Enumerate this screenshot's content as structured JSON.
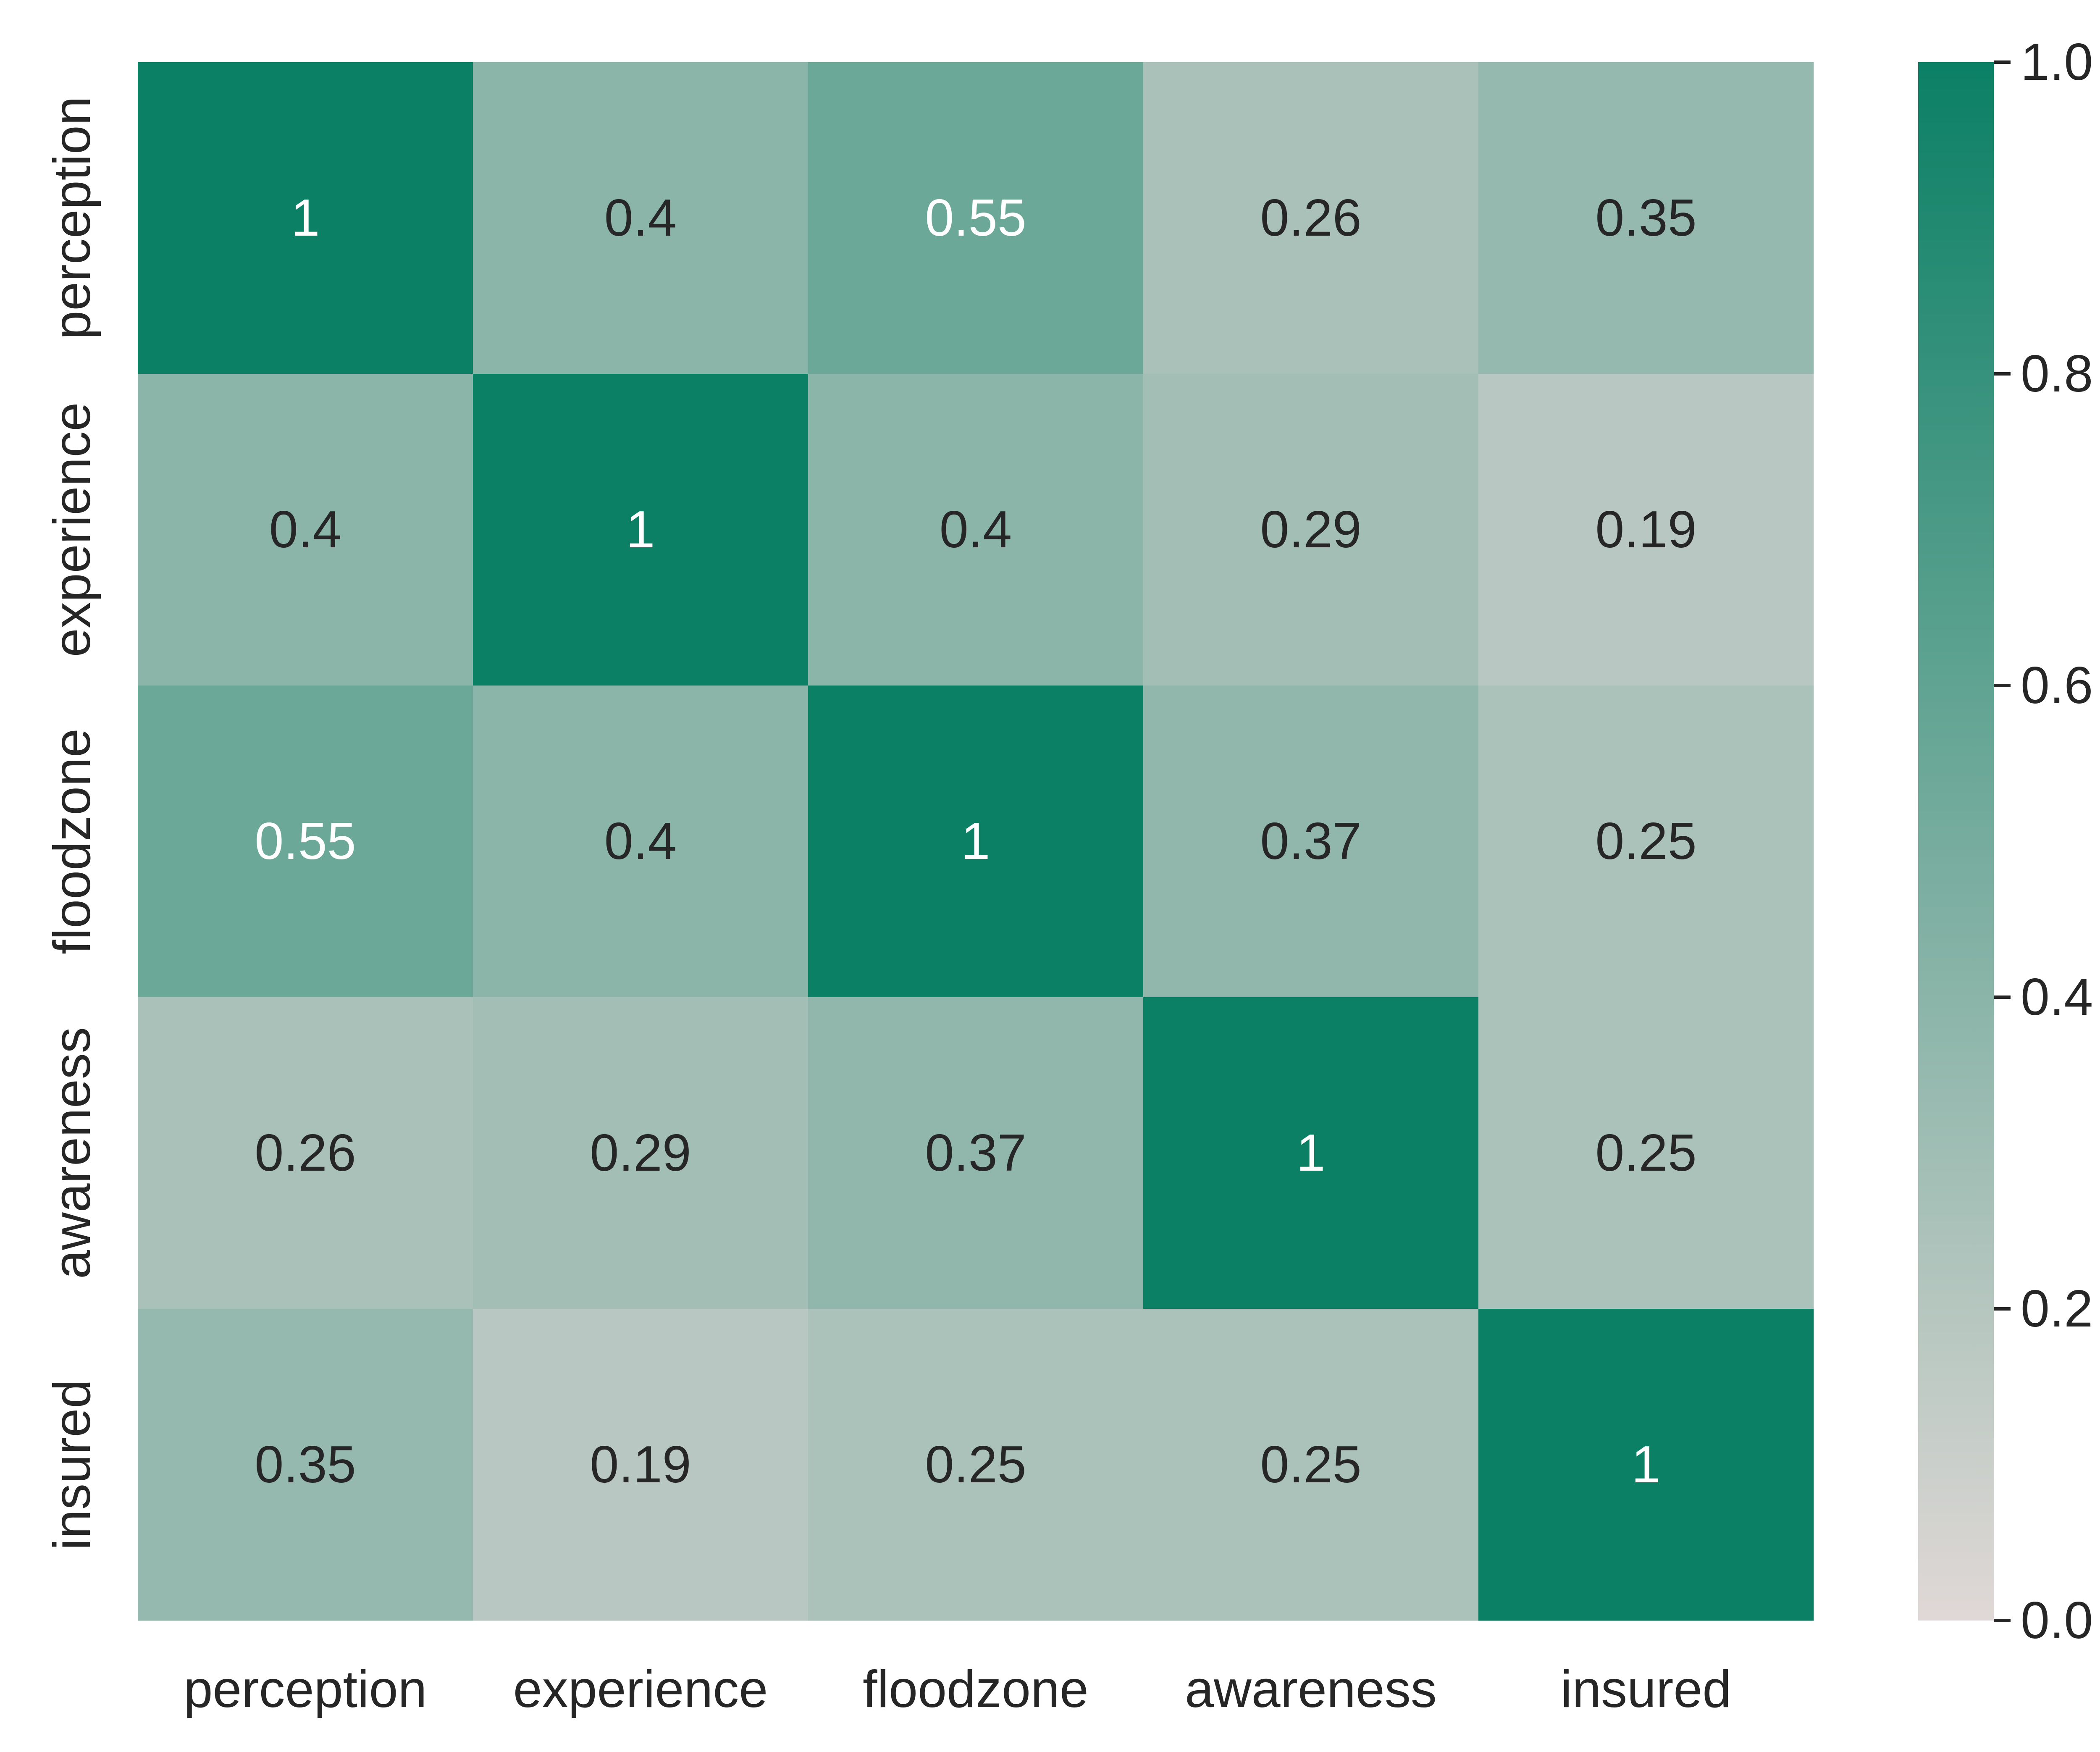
{
  "chart_data": {
    "type": "heatmap",
    "title": "",
    "xlabel": "",
    "ylabel": "",
    "x_categories": [
      "perception",
      "experience",
      "floodzone",
      "awareness",
      "insured"
    ],
    "y_categories": [
      "perception",
      "experience",
      "floodzone",
      "awareness",
      "insured"
    ],
    "values": [
      [
        1,
        0.4,
        0.55,
        0.26,
        0.35
      ],
      [
        0.4,
        1,
        0.4,
        0.29,
        0.19
      ],
      [
        0.55,
        0.4,
        1,
        0.37,
        0.25
      ],
      [
        0.26,
        0.29,
        0.37,
        1,
        0.25
      ],
      [
        0.35,
        0.19,
        0.25,
        0.25,
        1
      ]
    ],
    "annotations": [
      [
        "1",
        "0.4",
        "0.55",
        "0.26",
        "0.35"
      ],
      [
        "0.4",
        "1",
        "0.4",
        "0.29",
        "0.19"
      ],
      [
        "0.55",
        "0.4",
        "1",
        "0.37",
        "0.25"
      ],
      [
        "0.26",
        "0.29",
        "0.37",
        "1",
        "0.25"
      ],
      [
        "0.35",
        "0.19",
        "0.25",
        "0.25",
        "1"
      ]
    ],
    "colorbar": {
      "vmin": 0.0,
      "vmax": 1.0,
      "ticks": [
        0.0,
        0.2,
        0.4,
        0.6,
        0.8,
        1.0
      ],
      "tick_labels": [
        "0.0",
        "0.2",
        "0.4",
        "0.6",
        "0.8",
        "1.0"
      ],
      "color_min": "#e0d8d6",
      "color_max": "#0b8065"
    },
    "annotation_colors": {
      "dark_text": "#262626",
      "light_text": "#ffffff"
    },
    "grid": false,
    "legend": "colorbar-right"
  }
}
